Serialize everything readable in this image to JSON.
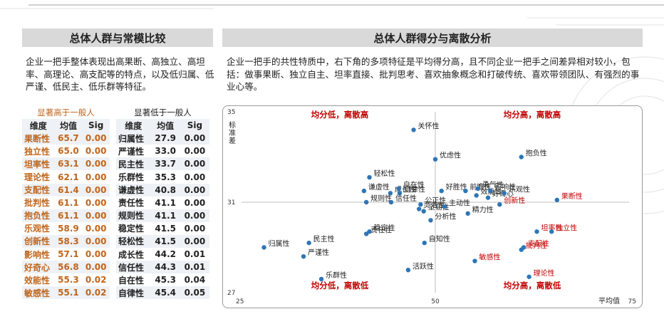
{
  "left_panel": {
    "title": "总体人群与常模比较",
    "description": "企业一把手整体表现出高果断、高独立、高坦率、高理论、高支配等的特点，以及低归属、低严谨、低民主、低乐群等特征。",
    "high_table": {
      "caption": "显著高于一般人",
      "headers": [
        "维度",
        "均值",
        "Sig"
      ],
      "rows": [
        [
          "果断性",
          "65.7",
          "0.00"
        ],
        [
          "独立性",
          "65.0",
          "0.00"
        ],
        [
          "坦率性",
          "63.1",
          "0.00"
        ],
        [
          "理论性",
          "62.1",
          "0.00"
        ],
        [
          "支配性",
          "61.4",
          "0.00"
        ],
        [
          "批判性",
          "61.1",
          "0.00"
        ],
        [
          "抱负性",
          "61.1",
          "0.00"
        ],
        [
          "乐观性",
          "58.9",
          "0.00"
        ],
        [
          "创新性",
          "58.3",
          "0.00"
        ],
        [
          "影响性",
          "57.1",
          "0.00"
        ],
        [
          "好奇心",
          "56.8",
          "0.00"
        ],
        [
          "效能性",
          "55.3",
          "0.02"
        ],
        [
          "敏感性",
          "55.1",
          "0.02"
        ]
      ]
    },
    "low_table": {
      "caption": "显著低于一般人",
      "headers": [
        "维度",
        "均值",
        "Sig"
      ],
      "rows": [
        [
          "归属性",
          "27.9",
          "0.00"
        ],
        [
          "严谨性",
          "33.0",
          "0.00"
        ],
        [
          "民主性",
          "33.7",
          "0.00"
        ],
        [
          "乐群性",
          "35.3",
          "0.00"
        ],
        [
          "谦虚性",
          "40.8",
          "0.00"
        ],
        [
          "责任性",
          "41.1",
          "0.00"
        ],
        [
          "规则性",
          "41.1",
          "0.00"
        ],
        [
          "稳定性",
          "41.5",
          "0.00"
        ],
        [
          "轻松性",
          "41.5",
          "0.00"
        ],
        [
          "成长性",
          "44.2",
          "0.01"
        ],
        [
          "信任性",
          "44.3",
          "0.01"
        ],
        [
          "自在性",
          "45.3",
          "0.04"
        ],
        [
          "自律性",
          "45.4",
          "0.05"
        ]
      ]
    }
  },
  "right_panel": {
    "title": "总体人群得分与离散分析",
    "description": "企业一把手的共性特质中，右下角的多项特征是平均得分高，且不同企业一把手之间差异相对较小，包括：做事果断、独立自主、坦率直接、批判思考、喜欢抽象概念和打破传统、喜欢带领团队、有强烈的事业心等。"
  },
  "chart_data": {
    "type": "scatter",
    "xlabel": "平均值",
    "ylabel": "标准差",
    "xlim": [
      25,
      75
    ],
    "ylim": [
      27,
      35
    ],
    "x_ticks": [
      "25",
      "50",
      "75"
    ],
    "y_ticks": [
      "35",
      "31",
      "27"
    ],
    "reference_lines": {
      "x": 50,
      "y": 31
    },
    "quadrant_labels": {
      "top_left": "均分低，离散高",
      "top_right": "均分高，离散高",
      "bottom_left": "均分低，离散低",
      "bottom_right": "均分高，离散低"
    },
    "marker_color": "#2e75b6",
    "highlight_color": "#c00000",
    "points": [
      {
        "name": "关怀性",
        "x": 47.2,
        "y": 34.2,
        "hl": false
      },
      {
        "name": "优虑性",
        "x": 50.0,
        "y": 32.9,
        "hl": false
      },
      {
        "name": "抱负性",
        "x": 61.1,
        "y": 33.0,
        "hl": false
      },
      {
        "name": "轻松性",
        "x": 41.5,
        "y": 32.1,
        "hl": false
      },
      {
        "name": "成长性",
        "x": 44.2,
        "y": 31.4,
        "hl": false
      },
      {
        "name": "自在性",
        "x": 45.3,
        "y": 31.6,
        "hl": false
      },
      {
        "name": "好胜性",
        "x": 50.8,
        "y": 31.5,
        "hl": false
      },
      {
        "name": "前瞻性",
        "x": 53.9,
        "y": 31.5,
        "hl": false
      },
      {
        "name": "勇气性",
        "x": 55.5,
        "y": 31.6,
        "hl": false
      },
      {
        "name": "谦虚性",
        "x": 40.8,
        "y": 31.5,
        "hl": false
      },
      {
        "name": "自律性",
        "x": 45.4,
        "y": 31.4,
        "hl": false
      },
      {
        "name": "好奇心",
        "x": 56.8,
        "y": 31.2,
        "hl": false
      },
      {
        "name": "效能性",
        "x": 55.3,
        "y": 31.3,
        "hl": false
      },
      {
        "name": "影响性",
        "x": 57.1,
        "y": 31.5,
        "hl": false
      },
      {
        "name": "乐观性",
        "x": 58.9,
        "y": 31.4,
        "hl": false
      },
      {
        "name": "规则性",
        "x": 41.1,
        "y": 31.0,
        "hl": false
      },
      {
        "name": "信任性",
        "x": 44.3,
        "y": 31.0,
        "hl": false
      },
      {
        "name": "公正性",
        "x": 48.1,
        "y": 30.9,
        "hl": false
      },
      {
        "name": "灵活性",
        "x": 47.9,
        "y": 30.7,
        "hl": false
      },
      {
        "name": "坚韧性",
        "x": 48.5,
        "y": 30.6,
        "hl": false
      },
      {
        "name": "主动性",
        "x": 51.2,
        "y": 30.8,
        "hl": false
      },
      {
        "name": "创新性",
        "x": 58.3,
        "y": 30.9,
        "hl": true
      },
      {
        "name": "果断性",
        "x": 65.7,
        "y": 31.1,
        "hl": true
      },
      {
        "name": "精力性",
        "x": 54.2,
        "y": 30.5,
        "hl": false
      },
      {
        "name": "分析性",
        "x": 49.4,
        "y": 30.2,
        "hl": false
      },
      {
        "name": "稳定性",
        "x": 41.5,
        "y": 29.7,
        "hl": false
      },
      {
        "name": "责任性",
        "x": 41.1,
        "y": 29.6,
        "hl": false
      },
      {
        "name": "坦率性",
        "x": 63.1,
        "y": 29.7,
        "hl": true
      },
      {
        "name": "独立性",
        "x": 65.0,
        "y": 29.7,
        "hl": true
      },
      {
        "name": "自知性",
        "x": 48.6,
        "y": 29.2,
        "hl": false
      },
      {
        "name": "民主性",
        "x": 33.7,
        "y": 29.2,
        "hl": false
      },
      {
        "name": "支配性",
        "x": 61.4,
        "y": 29.0,
        "hl": true
      },
      {
        "name": "批判性",
        "x": 61.1,
        "y": 28.9,
        "hl": true
      },
      {
        "name": "归属性",
        "x": 27.9,
        "y": 29.0,
        "hl": false
      },
      {
        "name": "严谨性",
        "x": 33.0,
        "y": 28.6,
        "hl": false
      },
      {
        "name": "敏感性",
        "x": 55.1,
        "y": 28.4,
        "hl": true
      },
      {
        "name": "活跃性",
        "x": 46.5,
        "y": 28.0,
        "hl": false
      },
      {
        "name": "乐群性",
        "x": 35.3,
        "y": 27.6,
        "hl": false
      },
      {
        "name": "理论性",
        "x": 62.1,
        "y": 27.7,
        "hl": true
      }
    ]
  }
}
